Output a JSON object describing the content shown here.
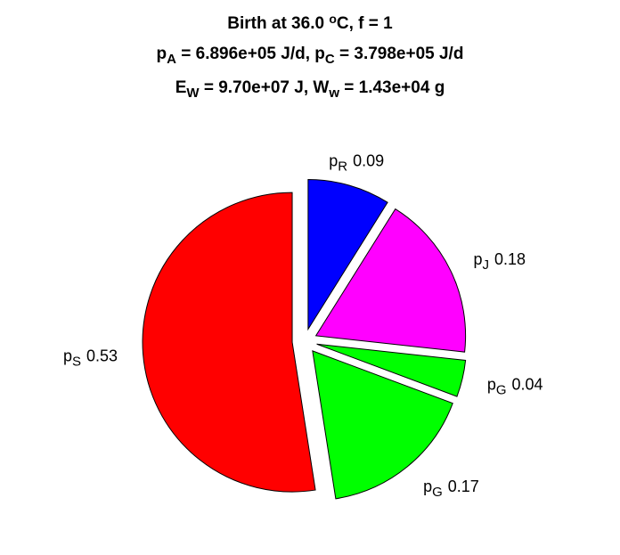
{
  "chart_data": {
    "type": "pie",
    "title": [
      [
        {
          "text": "Birth at 36.0 "
        },
        {
          "text": "o",
          "sup": true
        },
        {
          "text": "C, f = 1"
        }
      ],
      [
        {
          "text": "p"
        },
        {
          "text": "A",
          "sub": true
        },
        {
          "text": " = 6.896e+05 J/d, p"
        },
        {
          "text": "C",
          "sub": true
        },
        {
          "text": " = 3.798e+05 J/d"
        }
      ],
      [
        {
          "text": "E"
        },
        {
          "text": "W",
          "sub": true
        },
        {
          "text": " = 9.70e+07 J, W"
        },
        {
          "text": "w",
          "sub": true
        },
        {
          "text": " = 1.43e+04 g"
        }
      ]
    ],
    "labels": [
      {
        "base": "p",
        "sub": "R"
      },
      {
        "base": "p",
        "sub": "J"
      },
      {
        "base": "p",
        "sub": "G"
      },
      {
        "base": "p",
        "sub": "G"
      },
      {
        "base": "p",
        "sub": "S"
      }
    ],
    "values": [
      0.09,
      0.18,
      0.04,
      0.17,
      0.53
    ],
    "colors": [
      "#0000ff",
      "#ff00ff",
      "#00ff00",
      "#00ff00",
      "#ff0000"
    ],
    "exploded": true
  }
}
